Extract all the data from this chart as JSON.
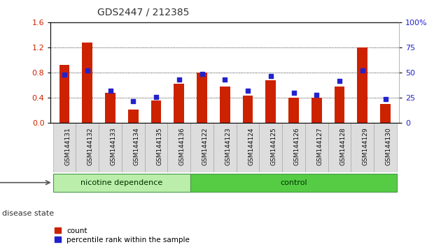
{
  "title": "GDS2447 / 212385",
  "categories": [
    "GSM144131",
    "GSM144132",
    "GSM144133",
    "GSM144134",
    "GSM144135",
    "GSM144136",
    "GSM144122",
    "GSM144123",
    "GSM144124",
    "GSM144125",
    "GSM144126",
    "GSM144127",
    "GSM144128",
    "GSM144129",
    "GSM144130"
  ],
  "counts": [
    0.92,
    1.28,
    0.48,
    0.22,
    0.36,
    0.62,
    0.8,
    0.58,
    0.44,
    0.68,
    0.4,
    0.4,
    0.58,
    1.2,
    0.3
  ],
  "percentiles": [
    48,
    52,
    32,
    22,
    26,
    43,
    49,
    43,
    32,
    47,
    30,
    28,
    42,
    52,
    24
  ],
  "ylim_left": [
    0,
    1.6
  ],
  "ylim_right": [
    0,
    100
  ],
  "yticks_left": [
    0,
    0.4,
    0.8,
    1.2,
    1.6
  ],
  "yticks_right": [
    0,
    25,
    50,
    75,
    100
  ],
  "bar_color": "#cc2200",
  "dot_color": "#2222cc",
  "grid_color": "#000000",
  "n_nicotine": 6,
  "n_control": 9,
  "nicotine_color_light": "#bbeeaa",
  "nicotine_color": "#88dd66",
  "control_color": "#55cc44",
  "disease_state_label": "disease state",
  "nicotine_label": "nicotine dependence",
  "control_label": "control",
  "legend_count": "count",
  "legend_percentile": "percentile rank within the sample",
  "background_color": "#ffffff",
  "tick_bg_color": "#dddddd",
  "figsize": [
    6.3,
    3.54
  ],
  "dpi": 100
}
